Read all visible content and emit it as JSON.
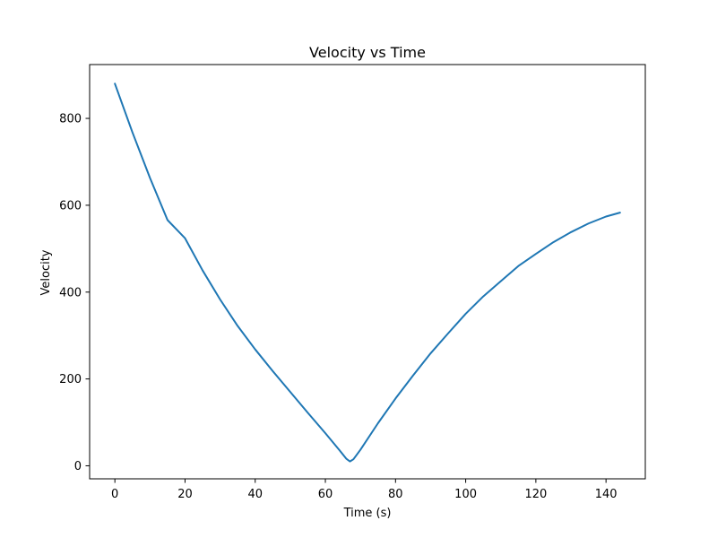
{
  "chart_data": {
    "type": "line",
    "title": "Velocity vs Time",
    "xlabel": "Time (s)",
    "ylabel": "Velocity",
    "xlim": [
      -7.2,
      151.2
    ],
    "ylim": [
      -30,
      924
    ],
    "xticks": [
      0,
      20,
      40,
      60,
      80,
      100,
      120,
      140
    ],
    "yticks": [
      0,
      200,
      400,
      600,
      800
    ],
    "grid": false,
    "legend": "none",
    "series": [
      {
        "color": "#1f77b4",
        "x": [
          0,
          5,
          10,
          15,
          20,
          25,
          30,
          35,
          40,
          45,
          50,
          55,
          60,
          64,
          66,
          67,
          68,
          70,
          75,
          80,
          85,
          90,
          95,
          100,
          105,
          110,
          115,
          120,
          125,
          130,
          135,
          140,
          144
        ],
        "y": [
          880,
          768,
          663,
          566,
          524,
          450,
          383,
          322,
          268,
          218,
          170,
          122,
          75,
          36,
          16,
          10,
          15,
          37,
          98,
          155,
          208,
          259,
          305,
          350,
          390,
          425,
          460,
          488,
          515,
          538,
          558,
          574,
          583
        ]
      }
    ]
  }
}
